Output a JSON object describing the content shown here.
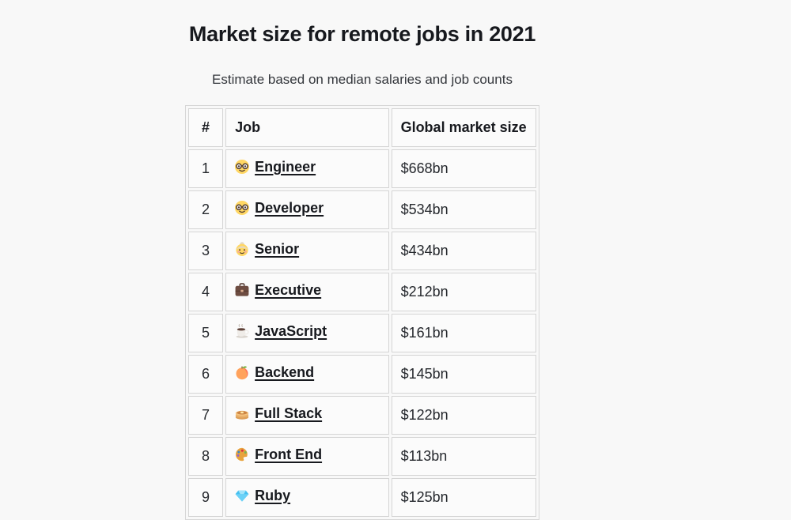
{
  "page": {
    "title": "Market size for remote jobs in 2021",
    "subtitle": "Estimate based on median salaries and job counts",
    "background_color": "#f8f8f8"
  },
  "table": {
    "columns": [
      "#",
      "Job",
      "Global market size"
    ],
    "rows": [
      {
        "rank": "1",
        "icon": "nerd-face-icon",
        "job": "Engineer",
        "market_size": "$668bn"
      },
      {
        "rank": "2",
        "icon": "nerd-face-icon",
        "job": "Developer",
        "market_size": "$534bn"
      },
      {
        "rank": "3",
        "icon": "old-woman-icon",
        "job": "Senior",
        "market_size": "$434bn"
      },
      {
        "rank": "4",
        "icon": "briefcase-icon",
        "job": "Executive",
        "market_size": "$212bn"
      },
      {
        "rank": "5",
        "icon": "coffee-icon",
        "job": "JavaScript",
        "market_size": "$161bn"
      },
      {
        "rank": "6",
        "icon": "peach-icon",
        "job": "Backend",
        "market_size": "$145bn"
      },
      {
        "rank": "7",
        "icon": "pancakes-icon",
        "job": "Full Stack",
        "market_size": "$122bn"
      },
      {
        "rank": "8",
        "icon": "palette-icon",
        "job": "Front End",
        "market_size": "$113bn"
      },
      {
        "rank": "9",
        "icon": "gem-icon",
        "job": "Ruby",
        "market_size": "$125bn"
      }
    ]
  },
  "colors": {
    "cell_background": "#fbfbfb",
    "cell_border": "#d5d5d5",
    "text": "#17191e"
  }
}
